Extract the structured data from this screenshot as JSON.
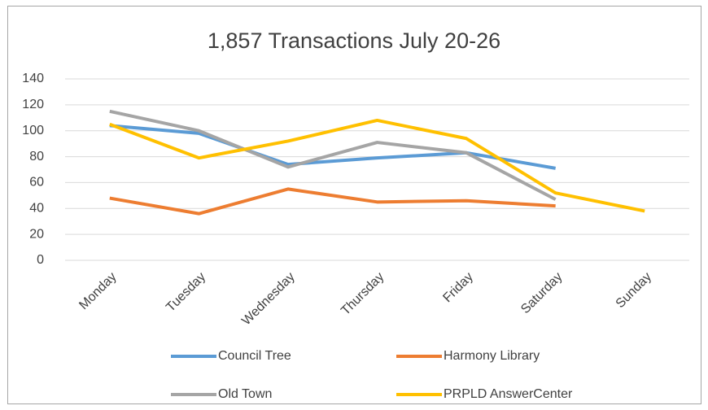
{
  "chart_data": {
    "type": "line",
    "title": "1,857 Transactions July 20-26",
    "categories": [
      "Monday",
      "Tuesday",
      "Wednesday",
      "Thursday",
      "Friday",
      "Saturday",
      "Sunday"
    ],
    "series": [
      {
        "name": "Council Tree",
        "color": "#5b9bd5",
        "values": [
          104,
          98,
          74,
          79,
          83,
          71,
          null
        ]
      },
      {
        "name": "Harmony Library",
        "color": "#ed7d31",
        "values": [
          48,
          36,
          55,
          45,
          46,
          42,
          null
        ]
      },
      {
        "name": "Old Town",
        "color": "#a5a5a5",
        "values": [
          115,
          100,
          72,
          91,
          83,
          47,
          null
        ]
      },
      {
        "name": "PRPLD AnswerCenter",
        "color": "#ffc000",
        "values": [
          105,
          79,
          92,
          108,
          94,
          52,
          38
        ]
      }
    ],
    "ylim": [
      0,
      140
    ],
    "yticks": [
      0,
      20,
      40,
      60,
      80,
      100,
      120,
      140
    ],
    "grid": true,
    "legend": "bottom"
  }
}
